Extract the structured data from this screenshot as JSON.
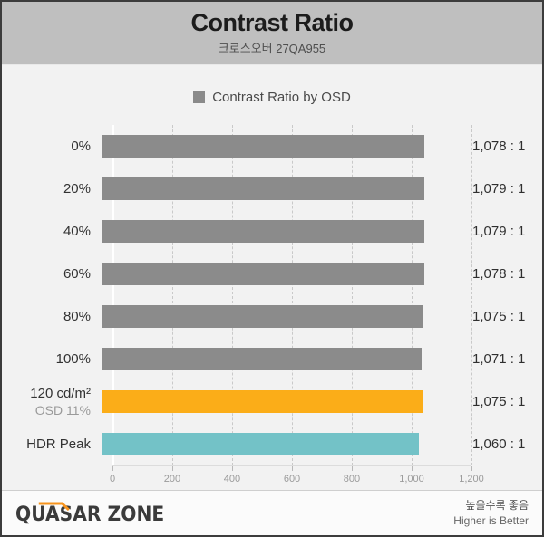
{
  "header": {
    "title": "Contrast Ratio",
    "subtitle": "크로스오버 27QA955"
  },
  "legend": {
    "label": "Contrast Ratio by OSD",
    "swatch_color": "#8a8a8a"
  },
  "chart_data": {
    "type": "bar",
    "orientation": "horizontal",
    "title": "Contrast Ratio",
    "subtitle": "크로스오버 27QA955",
    "legend_label": "Contrast Ratio by OSD",
    "legend_position": "top-center",
    "grid": "vertical-dashed",
    "xlim": [
      0,
      1200
    ],
    "xlabel": "",
    "ylabel": "",
    "xticks": [
      "0",
      "200",
      "400",
      "600",
      "800",
      "1,000",
      "1,200"
    ],
    "categories": [
      "0%",
      "20%",
      "40%",
      "60%",
      "80%",
      "100%",
      "120 cd/m² (OSD 11%)",
      "HDR Peak"
    ],
    "values": [
      1078,
      1079,
      1079,
      1078,
      1075,
      1071,
      1075,
      1060
    ],
    "rows": [
      {
        "label": "0%",
        "sublabel": "",
        "value": 1078,
        "display": "1,078 : 1",
        "color": "gray"
      },
      {
        "label": "20%",
        "sublabel": "",
        "value": 1079,
        "display": "1,079 : 1",
        "color": "gray"
      },
      {
        "label": "40%",
        "sublabel": "",
        "value": 1079,
        "display": "1,079 : 1",
        "color": "gray"
      },
      {
        "label": "60%",
        "sublabel": "",
        "value": 1078,
        "display": "1,078 : 1",
        "color": "gray"
      },
      {
        "label": "80%",
        "sublabel": "",
        "value": 1075,
        "display": "1,075 : 1",
        "color": "gray"
      },
      {
        "label": "100%",
        "sublabel": "",
        "value": 1071,
        "display": "1,071 : 1",
        "color": "gray"
      },
      {
        "label": "120 cd/m²",
        "sublabel": "OSD 11%",
        "value": 1075,
        "display": "1,075 : 1",
        "color": "orange"
      },
      {
        "label": "HDR Peak",
        "sublabel": "",
        "value": 1060,
        "display": "1,060 : 1",
        "color": "teal"
      }
    ],
    "colors": {
      "gray": "#8b8b8b",
      "orange": "#fbad18",
      "teal": "#73c2c7"
    },
    "accent_color": "#f7941d"
  },
  "footer": {
    "logo": "QUASAR ZONE",
    "note_korean": "높을수록 좋음",
    "note_english": "Higher is Better"
  }
}
